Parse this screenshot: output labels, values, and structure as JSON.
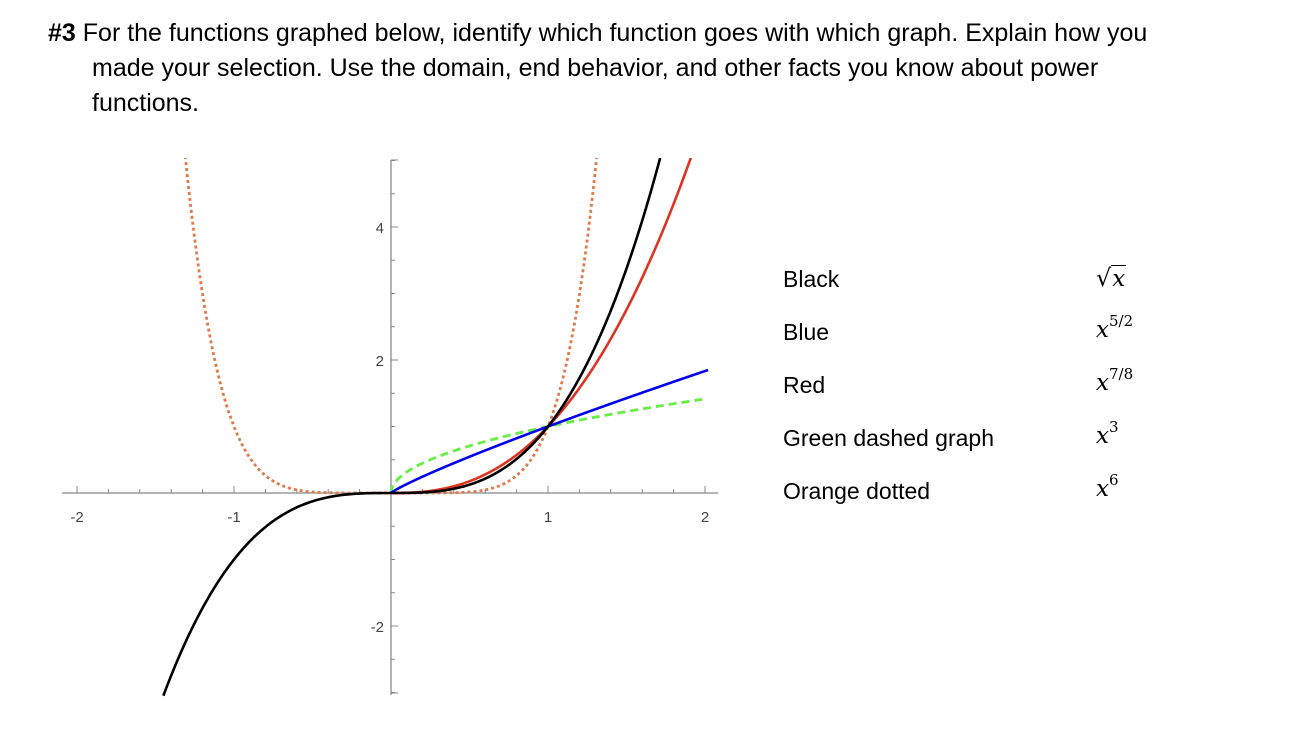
{
  "problem": {
    "number": "#3",
    "line1": "For the functions graphed below, identify which function goes with which graph. Explain how you",
    "line2": "made your selection. Use the domain, end behavior, and other facts you know about power",
    "line3": "functions."
  },
  "matching": {
    "graph_names": [
      "Black",
      "Blue",
      "Red",
      "Green dashed graph",
      "Orange dotted"
    ],
    "functions": {
      "f1": {
        "radical": "√",
        "base": "x"
      },
      "f2": {
        "base": "x",
        "exponent": "5/2"
      },
      "f3": {
        "base": "x",
        "exponent": "7/8"
      },
      "f4": {
        "base": "x",
        "exponent": "3"
      },
      "f5": {
        "base": "x",
        "exponent": "6"
      }
    }
  },
  "chart_data": {
    "type": "line",
    "title": "",
    "xlabel": "",
    "ylabel": "",
    "xlim": [
      -2,
      2.05
    ],
    "ylim": [
      -3,
      5
    ],
    "x_ticks": [
      "-2",
      "-1",
      "1",
      "2"
    ],
    "y_ticks": [
      "-2",
      "2",
      "4"
    ],
    "grid": false,
    "series": [
      {
        "color": "#000000",
        "style": "solid",
        "exponent": 3,
        "domain": [
          -1.45,
          2.0
        ],
        "points": [
          [
            -1.4,
            -2.74
          ],
          [
            -1,
            -1
          ],
          [
            0,
            0
          ],
          [
            1,
            1
          ],
          [
            1.5,
            3.38
          ],
          [
            1.71,
            5
          ]
        ]
      },
      {
        "color": "#0000ee",
        "style": "solid",
        "exponent": 0.875,
        "domain": [
          0,
          2.02
        ],
        "points": [
          [
            0,
            0
          ],
          [
            1,
            1
          ],
          [
            2,
            1.83
          ]
        ]
      },
      {
        "color": "#dd3322",
        "style": "solid",
        "exponent": 2.5,
        "domain": [
          0,
          2.0
        ],
        "points": [
          [
            0,
            0
          ],
          [
            1,
            1
          ],
          [
            1.5,
            2.76
          ],
          [
            1.9,
            4.98
          ]
        ]
      },
      {
        "color": "#66ee44",
        "style": "dashed",
        "exponent": 0.5,
        "domain": [
          0,
          2.0
        ],
        "points": [
          [
            0,
            0
          ],
          [
            0.25,
            0.5
          ],
          [
            1,
            1
          ],
          [
            2,
            1.41
          ]
        ]
      },
      {
        "color": "#e07a4a",
        "style": "dotted",
        "exponent": 6,
        "domain": [
          -1.35,
          1.35
        ],
        "points": [
          [
            -1.31,
            5
          ],
          [
            -1,
            1
          ],
          [
            0,
            0
          ],
          [
            1,
            1
          ],
          [
            1.31,
            5
          ]
        ]
      }
    ]
  }
}
